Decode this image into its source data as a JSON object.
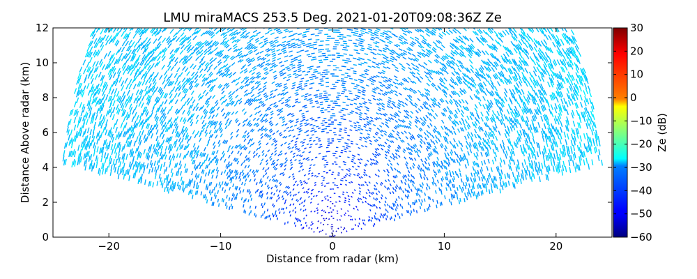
{
  "chart_data": {
    "type": "heatmap",
    "title": "LMU miraMACS 253.5 Deg. 2021-01-20T09:08:36Z  Ze",
    "xlabel": "Distance from radar (km)",
    "ylabel": "Distance Above radar  (km)",
    "xlim": [
      -25,
      25
    ],
    "ylim": [
      0,
      12
    ],
    "x_ticks": [
      -20,
      -10,
      0,
      10,
      20
    ],
    "x_tick_labels": [
      "−20",
      "−10",
      "0",
      "10",
      "20"
    ],
    "y_ticks": [
      0,
      2,
      4,
      6,
      8,
      10,
      12
    ],
    "y_tick_labels": [
      "0",
      "2",
      "4",
      "6",
      "8",
      "10",
      "12"
    ],
    "grid": false,
    "scan": {
      "max_range_km": 24.5,
      "elevation_min_deg": 10,
      "elevation_max_deg": 170
    },
    "field": {
      "description_values_dB": [
        {
          "range_km": 0,
          "ze_dB": -55
        },
        {
          "range_km": 3,
          "ze_dB": -45
        },
        {
          "range_km": 8,
          "ze_dB": -38
        },
        {
          "range_km": 14,
          "ze_dB": -33
        },
        {
          "range_km": 24,
          "ze_dB": -30
        }
      ]
    },
    "colorbar": {
      "label": "Ze (dB)",
      "min": -60,
      "max": 30,
      "ticks": [
        30,
        20,
        10,
        0,
        -10,
        -20,
        -30,
        -40,
        -50,
        -60
      ],
      "tick_labels": [
        "30",
        "20",
        "10",
        "0",
        "−10",
        "−20",
        "−30",
        "−40",
        "−50",
        "−60"
      ],
      "colormap": "jet"
    }
  }
}
